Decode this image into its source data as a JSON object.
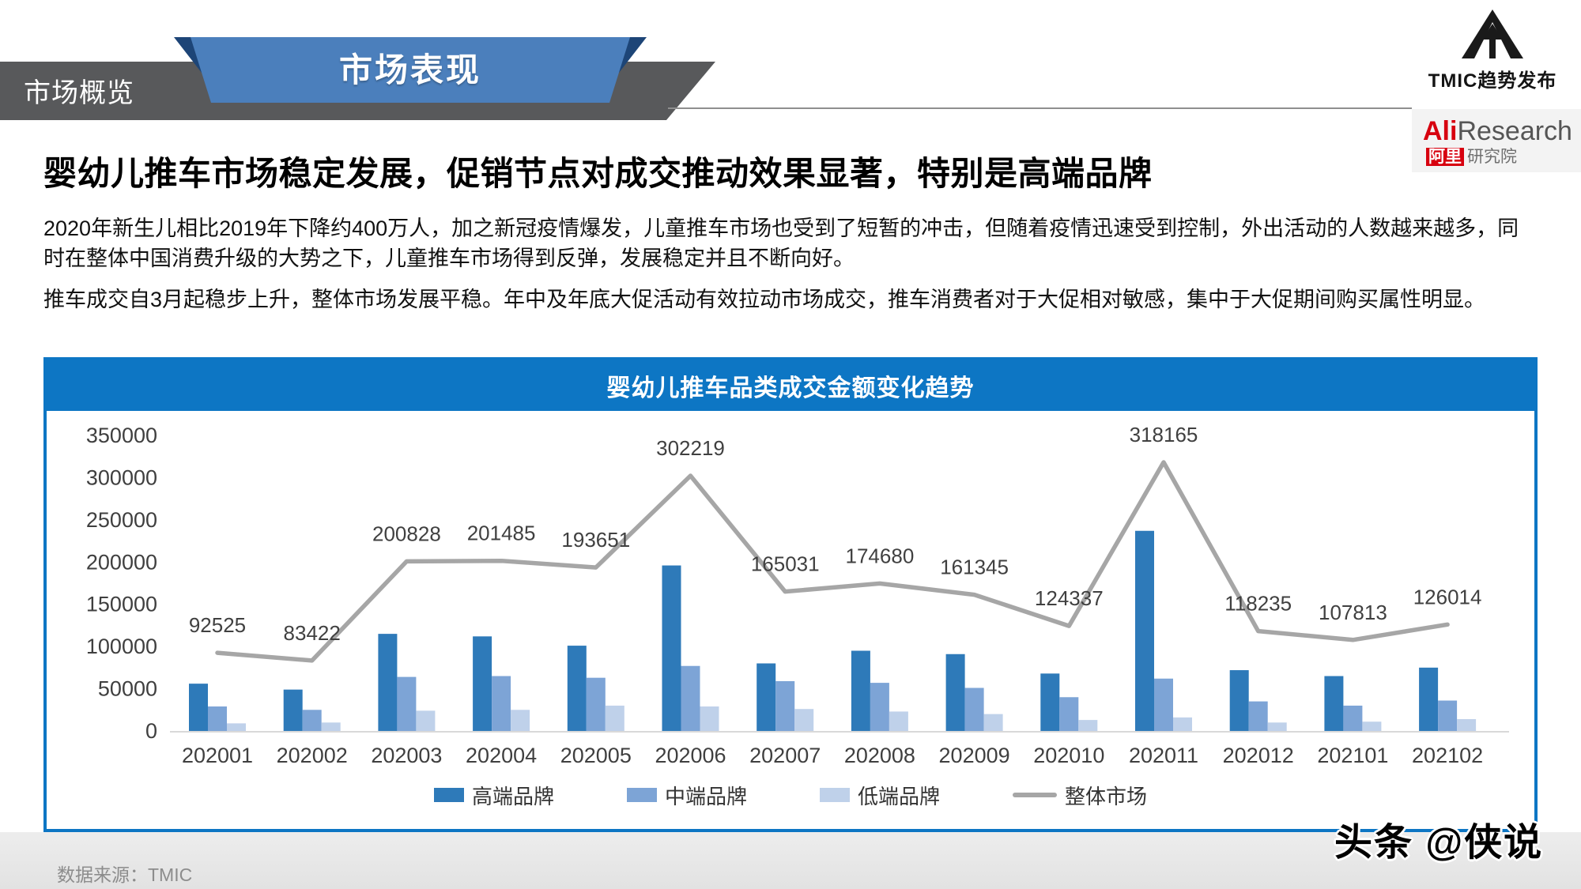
{
  "header": {
    "tab_label": "市场概览",
    "banner_label": "市场表现",
    "tmic_logo_text": "TMIC趋势发布",
    "ali_logo": {
      "ali": "Ali",
      "research": "Research",
      "ali_cn": "阿里",
      "research_cn": "研究院"
    }
  },
  "title": "婴幼儿推车市场稳定发展，促销节点对成交推动效果显著，特别是高端品牌",
  "paragraphs": {
    "p1": "2020年新生儿相比2019年下降约400万人，加之新冠疫情爆发，儿童推车市场也受到了短暂的冲击，但随着疫情迅速受到控制，外出活动的人数越来越多，同时在整体中国消费升级的大势之下，儿童推车市场得到反弹，发展稳定并且不断向好。",
    "p2": "推车成交自3月起稳步上升，整体市场发展平稳。年中及年底大促活动有效拉动市场成交，推车消费者对于大促相对敏感，集中于大促期间购买属性明显。"
  },
  "chart_data": {
    "type": "bar",
    "title": "婴幼儿推车品类成交金额变化趋势",
    "categories": [
      "202001",
      "202002",
      "202003",
      "202004",
      "202005",
      "202006",
      "202007",
      "202008",
      "202009",
      "202010",
      "202011",
      "202012",
      "202101",
      "202102"
    ],
    "series": [
      {
        "name": "高端品牌",
        "type": "bar",
        "color": "#2e7ab9",
        "values": [
          56000,
          49000,
          115000,
          112000,
          101000,
          196000,
          80000,
          95000,
          91000,
          68000,
          237000,
          72000,
          65000,
          75000
        ]
      },
      {
        "name": "中端品牌",
        "type": "bar",
        "color": "#7da4d6",
        "values": [
          29000,
          25000,
          64000,
          65000,
          63000,
          77000,
          59000,
          57000,
          51000,
          40000,
          62000,
          35000,
          30000,
          36000
        ]
      },
      {
        "name": "低端品牌",
        "type": "bar",
        "color": "#bfd1ea",
        "values": [
          9000,
          10000,
          24000,
          25000,
          30000,
          29000,
          26000,
          23000,
          20000,
          13000,
          16000,
          10000,
          11000,
          14000
        ]
      },
      {
        "name": "整体市场",
        "type": "line",
        "color": "#a6a6a6",
        "values": [
          92525,
          83422,
          200828,
          201485,
          193651,
          302219,
          165031,
          174680,
          161345,
          124337,
          318165,
          118235,
          107813,
          126014
        ],
        "data_labels": true
      }
    ],
    "ylim": [
      0,
      350000
    ],
    "ytick_step": 50000,
    "yticks": [
      "0",
      "50000",
      "100000",
      "150000",
      "200000",
      "250000",
      "300000",
      "350000"
    ],
    "legend_position": "bottom",
    "gridlines": false
  },
  "footer": {
    "source": "数据来源：TMIC",
    "watermark": "头条 @侠说"
  },
  "theme": {
    "chart_blue": "#0d76c4",
    "banner_blue": "#4b7fbc",
    "banner_navy": "#1d4577",
    "tab_gray": "#58595b",
    "ali_red": "#d7000f",
    "axis_text": "#3f3f3f",
    "label_text": "#404040",
    "baseline_gray": "#d9d9d9"
  }
}
